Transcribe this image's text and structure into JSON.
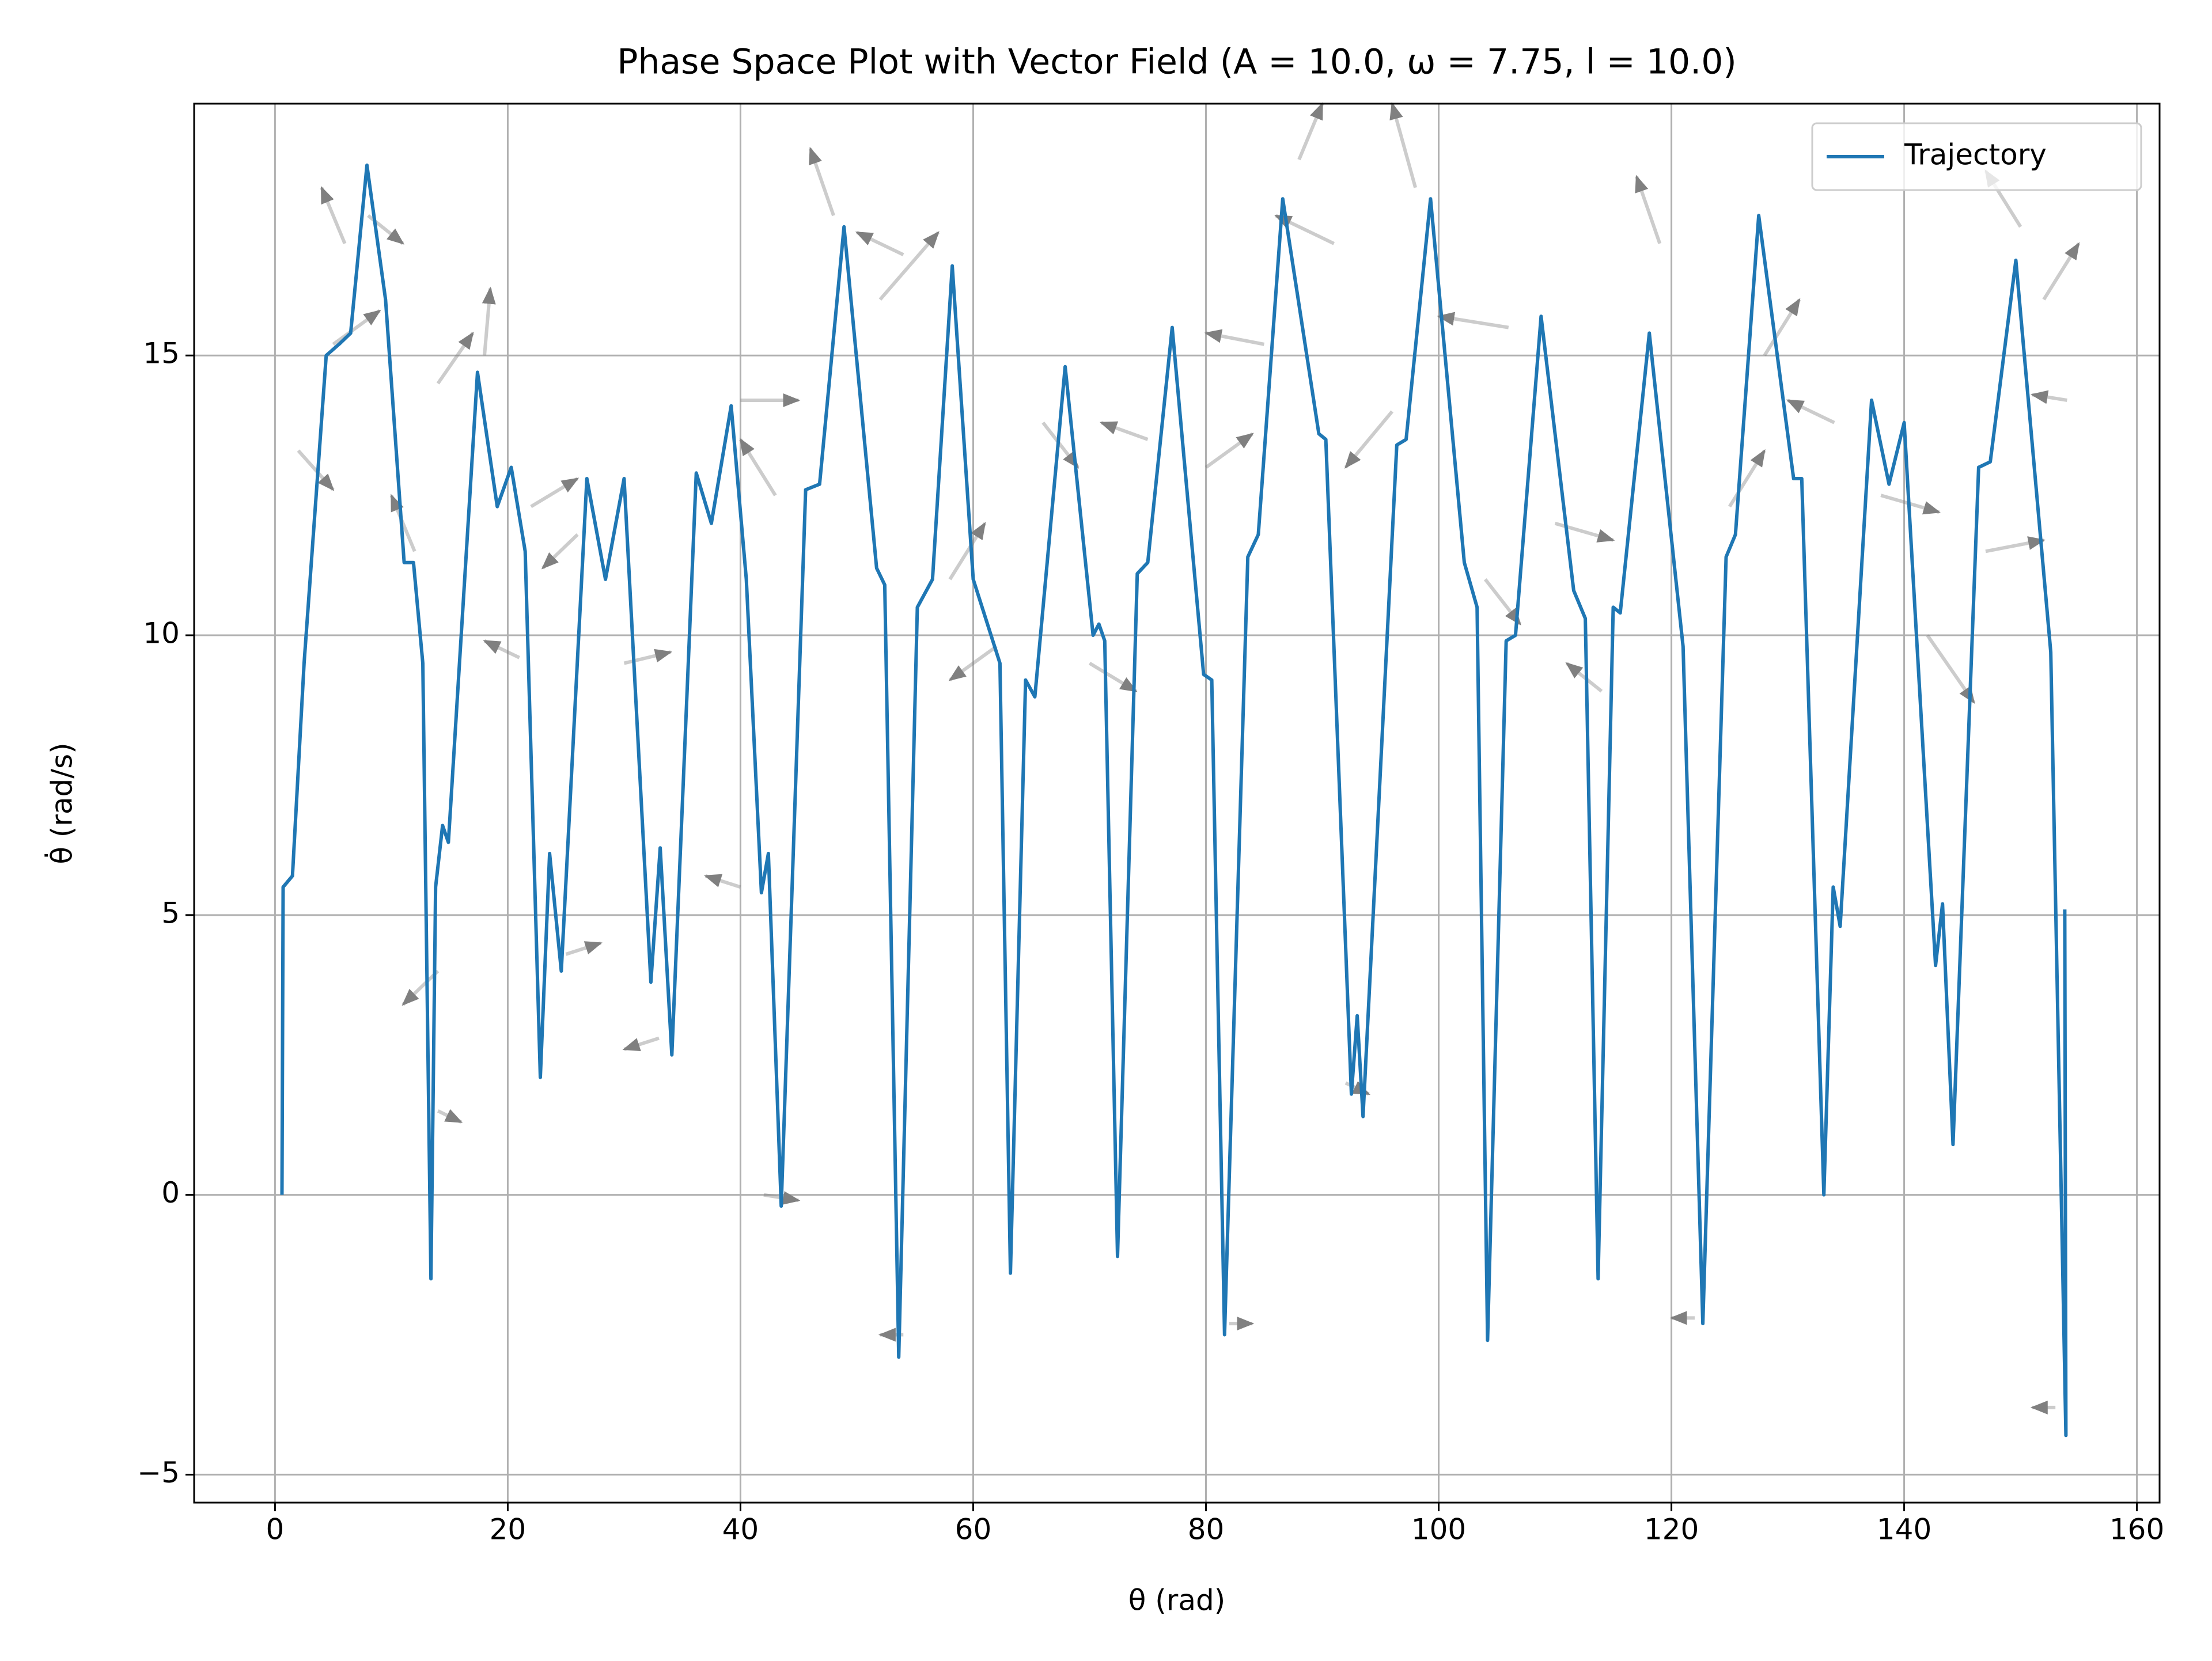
{
  "chart_data": {
    "type": "line",
    "title": "Phase Space Plot with Vector Field (A = 10.0, ω = 7.75, l = 10.0)",
    "x_label": "θ (rad)",
    "y_label": "θ̇ (rad/s)",
    "xlim": [
      -6.95,
      161.95
    ],
    "ylim": [
      -5.5,
      19.5
    ],
    "xticks": [
      0,
      20,
      40,
      60,
      80,
      100,
      120,
      140,
      160
    ],
    "yticks": [
      {
        "value": -5,
        "label": "−5"
      },
      0,
      5,
      10,
      15
    ],
    "grid": true,
    "legend": "upper right",
    "series": [
      {
        "name": "Trajectory",
        "color": "#1f77b4",
        "x": [
          0.6,
          0.7,
          1.5,
          2.5,
          4.4,
          5.5,
          6.5,
          7.9,
          9.5,
          11.1,
          11.9,
          12.7,
          13.4,
          13.8,
          14.4,
          14.9,
          17.4,
          19.1,
          20.3,
          21.5,
          22.8,
          23.6,
          24.6,
          26.8,
          28.4,
          30.0,
          32.3,
          33.1,
          34.1,
          36.2,
          37.5,
          39.2,
          40.5,
          41.8,
          42.4,
          43.5,
          45.6,
          46.8,
          48.9,
          51.7,
          52.4,
          53.6,
          55.2,
          56.5,
          58.2,
          60.0,
          62.3,
          63.2,
          64.5,
          65.3,
          67.9,
          70.3,
          70.8,
          71.3,
          72.4,
          74.1,
          75.0,
          77.1,
          79.8,
          80.5,
          81.6,
          83.6,
          84.5,
          86.6,
          89.7,
          90.3,
          92.5,
          93.0,
          93.5,
          96.4,
          97.2,
          99.3,
          102.2,
          103.3,
          104.2,
          105.8,
          106.6,
          108.8,
          111.6,
          112.6,
          113.7,
          115.0,
          115.6,
          118.1,
          121.0,
          122.7,
          124.7,
          125.5,
          127.5,
          130.5,
          131.2,
          133.1,
          133.9,
          134.5,
          137.2,
          138.7,
          140.0,
          142.7,
          143.3,
          144.2,
          146.4,
          147.4,
          149.6,
          152.6,
          153.9,
          153.8
        ],
        "values": [
          0,
          5.5,
          5.7,
          9.5,
          15.0,
          15.2,
          15.4,
          18.4,
          16.0,
          11.3,
          11.3,
          9.5,
          -1.5,
          5.5,
          6.6,
          6.3,
          14.7,
          12.3,
          13.0,
          11.5,
          2.1,
          6.1,
          4.0,
          12.8,
          11.0,
          12.8,
          3.8,
          6.2,
          2.5,
          12.9,
          12.0,
          14.1,
          11.0,
          5.4,
          6.1,
          -0.2,
          12.6,
          12.7,
          17.3,
          11.2,
          10.9,
          -2.9,
          10.5,
          11.0,
          16.6,
          11.0,
          9.5,
          -1.4,
          9.2,
          8.9,
          14.8,
          10.0,
          10.2,
          9.9,
          -1.1,
          11.1,
          11.3,
          15.5,
          9.3,
          9.2,
          -2.5,
          11.4,
          11.8,
          17.8,
          13.6,
          13.5,
          1.8,
          3.2,
          1.4,
          13.4,
          13.5,
          17.8,
          11.3,
          10.5,
          -2.6,
          9.9,
          10.0,
          15.7,
          10.8,
          10.3,
          -1.5,
          10.5,
          10.4,
          15.4,
          9.8,
          -2.3,
          11.4,
          11.8,
          17.5,
          12.8,
          12.8,
          0,
          5.5,
          4.8,
          14.2,
          12.7,
          13.8,
          4.1,
          5.2,
          0.9,
          13.0,
          13.1,
          16.7,
          9.7,
          -4.3,
          5.1
        ]
      }
    ],
    "quiver": {
      "color": "#808080",
      "x": [
        6,
        8,
        5,
        12,
        2,
        14,
        18,
        22,
        26,
        30,
        21,
        14,
        14,
        25,
        33,
        40,
        43,
        48,
        52,
        54,
        58,
        62,
        66,
        70,
        75,
        80,
        85,
        88,
        91,
        96,
        98,
        104,
        106,
        110,
        114,
        119,
        125,
        128,
        134,
        138,
        142,
        147,
        150,
        152,
        154,
        40,
        92,
        42,
        54,
        122,
        82,
        153
      ],
      "y": [
        17,
        17.5,
        15.2,
        11.5,
        13.3,
        14.5,
        15,
        12.3,
        11.8,
        9.5,
        9.6,
        4,
        1.5,
        4.3,
        2.8,
        14.2,
        12.5,
        17.5,
        16,
        16.8,
        11,
        9.8,
        13.8,
        9.5,
        13.5,
        13,
        15.2,
        18.5,
        17,
        14,
        18,
        11,
        15.5,
        12,
        9,
        17,
        12.3,
        15,
        13.8,
        12.5,
        10,
        11.5,
        17.3,
        16,
        14.2,
        5.5,
        2,
        0,
        -2.5,
        -2.2,
        -2.3,
        -3.8
      ],
      "dx": [
        -2,
        3,
        4,
        -2,
        3,
        3,
        0.5,
        4,
        -3,
        4,
        -3,
        -3,
        2,
        3,
        -3,
        5,
        -3,
        -2,
        5,
        -4,
        3,
        -4,
        3,
        4,
        -4,
        4,
        -5,
        2,
        -5,
        -4,
        -2,
        3,
        -6,
        5,
        -3,
        -2,
        3,
        3,
        -4,
        5,
        4,
        5,
        -3,
        3,
        -3,
        -3,
        2,
        3,
        -2,
        -2,
        2,
        -2
      ],
      "dy": [
        1,
        -0.5,
        0.6,
        1,
        -0.7,
        0.9,
        1.2,
        0.5,
        -0.6,
        0.2,
        0.3,
        -0.6,
        -0.2,
        0.2,
        -0.2,
        0,
        1,
        1.2,
        1.2,
        0.4,
        1,
        -0.6,
        -0.8,
        -0.5,
        0.3,
        0.6,
        0.2,
        1,
        0.5,
        -1,
        1.5,
        -0.8,
        0.2,
        -0.3,
        0.5,
        1.2,
        1,
        1,
        0.4,
        -0.3,
        -1.2,
        0.2,
        1,
        1,
        0.1,
        0.2,
        -0.2,
        -0.1,
        0,
        0,
        0,
        0
      ]
    }
  }
}
